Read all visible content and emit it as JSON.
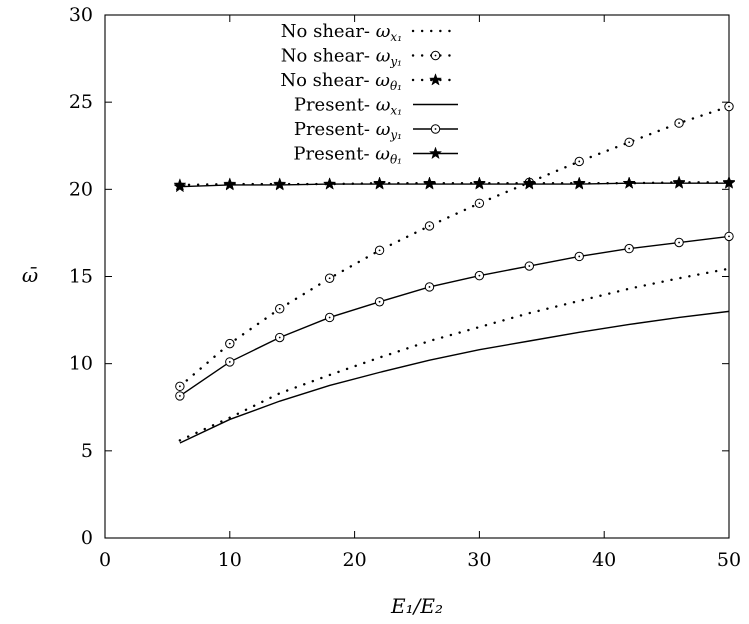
{
  "chart_data": {
    "type": "line",
    "xlabel": "E₁/E₂",
    "ylabel": "ω̄",
    "xlim": [
      0,
      50
    ],
    "ylim": [
      0,
      30
    ],
    "xticks": [
      0,
      10,
      20,
      30,
      40,
      50
    ],
    "yticks": [
      0,
      5,
      10,
      15,
      20,
      25,
      30
    ],
    "grid": false,
    "legend_position": "top-right",
    "series": [
      {
        "name": "No shear- ωx1",
        "label_text": "No shear- ",
        "symbol": "ω",
        "subscript": "x₁",
        "style": "dotted",
        "marker": "none",
        "x": [
          6,
          10,
          14,
          18,
          22,
          26,
          30,
          34,
          38,
          42,
          46,
          50
        ],
        "y": [
          5.6,
          6.9,
          8.3,
          9.35,
          10.35,
          11.3,
          12.1,
          12.9,
          13.6,
          14.3,
          14.9,
          15.45
        ]
      },
      {
        "name": "No shear- ωy1",
        "label_text": "No shear- ",
        "symbol": "ω",
        "subscript": "y₁",
        "style": "dotted",
        "marker": "circle",
        "x": [
          6,
          10,
          14,
          18,
          22,
          26,
          30,
          34,
          38,
          42,
          46,
          50
        ],
        "y": [
          8.7,
          11.15,
          13.15,
          14.9,
          16.5,
          17.9,
          19.2,
          20.4,
          21.6,
          22.7,
          23.8,
          24.75
        ]
      },
      {
        "name": "No shear- ωθ1",
        "label_text": "No shear- ",
        "symbol": "ω",
        "subscript": "θ₁",
        "style": "dotted",
        "marker": "star",
        "x": [
          6,
          10,
          14,
          18,
          22,
          26,
          30,
          34,
          38,
          42,
          46,
          50
        ],
        "y": [
          20.25,
          20.3,
          20.3,
          20.3,
          20.35,
          20.35,
          20.35,
          20.35,
          20.35,
          20.35,
          20.4,
          20.4
        ]
      },
      {
        "name": "Present- ωx1",
        "label_text": "Present- ",
        "symbol": "ω",
        "subscript": "x₁",
        "style": "solid",
        "marker": "none",
        "x": [
          6,
          10,
          14,
          18,
          22,
          26,
          30,
          34,
          38,
          42,
          46,
          50
        ],
        "y": [
          5.45,
          6.8,
          7.85,
          8.75,
          9.5,
          10.2,
          10.8,
          11.3,
          11.8,
          12.25,
          12.65,
          13.0
        ]
      },
      {
        "name": "Present- ωy1",
        "label_text": "Present- ",
        "symbol": "ω",
        "subscript": "y₁",
        "style": "solid",
        "marker": "circle",
        "x": [
          6,
          10,
          14,
          18,
          22,
          26,
          30,
          34,
          38,
          42,
          46,
          50
        ],
        "y": [
          8.15,
          10.1,
          11.5,
          12.65,
          13.55,
          14.4,
          15.05,
          15.6,
          16.15,
          16.6,
          16.95,
          17.3
        ]
      },
      {
        "name": "Present- ωθ1",
        "label_text": "Present- ",
        "symbol": "ω",
        "subscript": "θ₁",
        "style": "solid",
        "marker": "star",
        "x": [
          6,
          10,
          14,
          18,
          22,
          26,
          30,
          34,
          38,
          42,
          46,
          50
        ],
        "y": [
          20.15,
          20.25,
          20.25,
          20.3,
          20.3,
          20.3,
          20.3,
          20.3,
          20.3,
          20.35,
          20.35,
          20.35
        ]
      }
    ]
  }
}
